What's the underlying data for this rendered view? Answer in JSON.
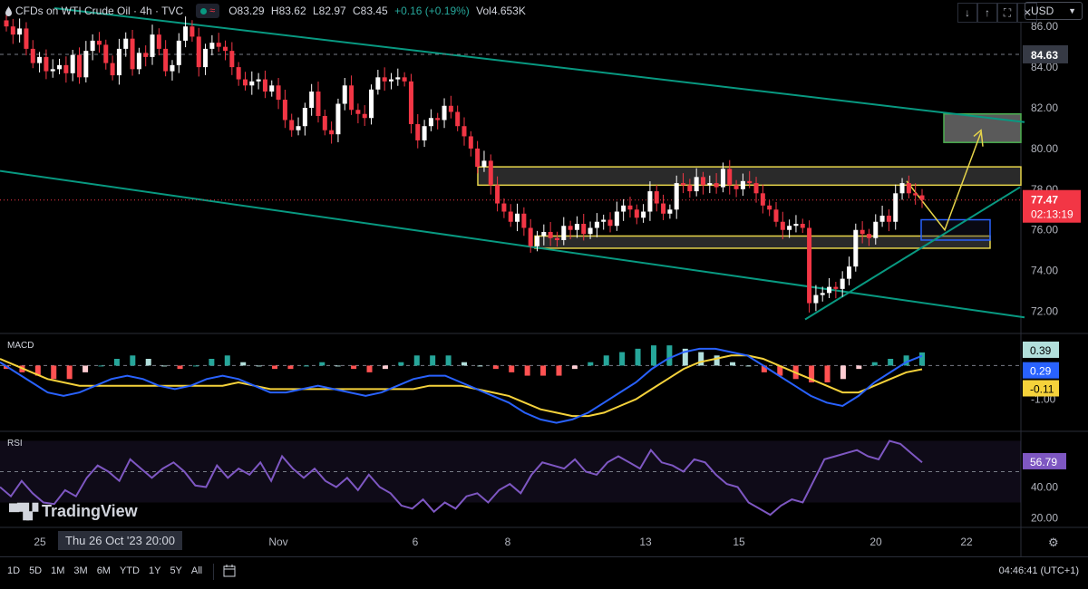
{
  "header": {
    "symbol": "CFDs on WTI Crude Oil · 4h · TVC",
    "open": "O83.29",
    "high": "H83.62",
    "low": "L82.97",
    "close": "C83.45",
    "change": "+0.16 (+0.19%)",
    "volume": "Vol4.653K"
  },
  "toolbar": {
    "currency": "USD",
    "down_icon": "arrow-down-icon",
    "up_icon": "arrow-up-icon",
    "expand_icon": "expand-icon",
    "close_icon": "close-icon"
  },
  "price_axis": {
    "ticks": [
      "86.00",
      "84.00",
      "82.00",
      "80.00",
      "78.00",
      "76.00",
      "74.00",
      "72.00"
    ],
    "crosshair_label": "84.63",
    "last_price": "77.47",
    "countdown": "02:13:19"
  },
  "macd": {
    "title": "MACD",
    "tick": "-1.00",
    "histogram_label": "0.39",
    "macd_label": "0.29",
    "signal_label": "-0.11"
  },
  "rsi": {
    "title": "RSI",
    "ticks": [
      "40.00",
      "20.00"
    ],
    "value_label": "56.79"
  },
  "time_axis": {
    "labels": [
      "25",
      "Nov",
      "6",
      "8",
      "13",
      "15",
      "20",
      "22"
    ],
    "hover_label": "Thu 26 Oct '23   20:00"
  },
  "watermark": "TradingView",
  "timeframes": [
    "1D",
    "5D",
    "1M",
    "3M",
    "6M",
    "YTD",
    "1Y",
    "5Y",
    "All"
  ],
  "clock": "04:46:41 (UTC+1)",
  "colors": {
    "up": "#ffffff",
    "down": "#f23645",
    "channel": "#089981",
    "zone": "#e6d44a",
    "macd": "#2962ff",
    "signal": "#f5d23b",
    "rsi": "#7e57c2"
  },
  "chart_data": [
    {
      "type": "candlestick",
      "title": "CFDs on WTI Crude Oil · 4h · TVC",
      "ylim": [
        71,
        87.3
      ],
      "x_labels": [
        "25",
        "Nov",
        "6",
        "8",
        "13",
        "15",
        "20",
        "22"
      ],
      "close": [
        86.0,
        85.6,
        85.9,
        84.9,
        84.2,
        84.5,
        83.8,
        83.9,
        84.1,
        83.7,
        84.6,
        83.5,
        84.8,
        85.3,
        85.1,
        84.2,
        83.6,
        84.9,
        85.4,
        83.9,
        84.7,
        84.5,
        85.6,
        84.9,
        83.8,
        84.1,
        85.3,
        86.0,
        85.5,
        84.0,
        84.9,
        85.2,
        85.0,
        84.8,
        84.0,
        83.4,
        83.1,
        83.3,
        83.4,
        82.8,
        83.1,
        82.4,
        81.4,
        80.9,
        81.1,
        82.0,
        82.8,
        81.6,
        80.9,
        80.7,
        82.2,
        83.1,
        81.9,
        81.7,
        81.5,
        82.9,
        83.5,
        83.3,
        83.4,
        83.5,
        83.3,
        81.2,
        80.4,
        81.1,
        81.5,
        81.4,
        82.1,
        81.8,
        81.1,
        80.6,
        80.0,
        79.1,
        79.4,
        78.2,
        77.3,
        76.9,
        76.4,
        76.8,
        76.1,
        75.2,
        75.7,
        75.9,
        75.6,
        75.5,
        76.2,
        76.0,
        76.3,
        75.8,
        76.1,
        76.4,
        76.5,
        76.2,
        76.9,
        77.2,
        77.0,
        76.6,
        76.9,
        77.9,
        77.3,
        76.8,
        77.0,
        78.3,
        78.2,
        77.9,
        78.6,
        78.2,
        78.3,
        78.1,
        79.0,
        78.2,
        78.0,
        78.4,
        78.3,
        77.8,
        77.2,
        77.0,
        76.4,
        76.0,
        76.2,
        76.3,
        76.1,
        72.4,
        72.8,
        72.9,
        73.2,
        73.1,
        73.6,
        74.2,
        76.0,
        75.8,
        75.6,
        76.4,
        76.7,
        76.4,
        77.8,
        78.3,
        77.8,
        77.7,
        77.47
      ],
      "price_zones": [
        {
          "name": "resistance",
          "from": 78.2,
          "to": 79.1
        },
        {
          "name": "support",
          "from": 75.1,
          "to": 75.7
        },
        {
          "name": "target",
          "from": 80.3,
          "to": 81.7
        },
        {
          "name": "entry",
          "from": 75.5,
          "to": 76.5
        }
      ],
      "trendlines": [
        {
          "name": "channel-top",
          "from": [
            60,
            86.9
          ],
          "to": [
            1130,
            81.3
          ]
        },
        {
          "name": "channel-bottom",
          "from": [
            0,
            78.9
          ],
          "to": [
            1130,
            71.7
          ]
        },
        {
          "name": "ascending-support",
          "from": [
            888,
            71.6
          ],
          "to": [
            1125,
            78.1
          ]
        }
      ],
      "last_price": 77.47
    },
    {
      "type": "line",
      "title": "MACD",
      "ylim": [
        -1.9,
        0.9
      ],
      "tick": "-1.00",
      "series": [
        {
          "name": "MACD",
          "values": [
            0.1,
            -0.2,
            -0.5,
            -0.8,
            -0.9,
            -0.8,
            -0.6,
            -0.4,
            -0.3,
            -0.4,
            -0.6,
            -0.7,
            -0.6,
            -0.4,
            -0.3,
            -0.4,
            -0.6,
            -0.8,
            -0.8,
            -0.7,
            -0.6,
            -0.7,
            -0.8,
            -0.9,
            -0.8,
            -0.6,
            -0.4,
            -0.3,
            -0.3,
            -0.5,
            -0.7,
            -0.9,
            -1.1,
            -1.4,
            -1.6,
            -1.7,
            -1.6,
            -1.4,
            -1.1,
            -0.8,
            -0.5,
            -0.1,
            0.2,
            0.4,
            0.5,
            0.5,
            0.4,
            0.3,
            0.0,
            -0.3,
            -0.6,
            -0.9,
            -1.1,
            -1.2,
            -0.9,
            -0.5,
            -0.2,
            0.1,
            0.29
          ]
        },
        {
          "name": "Signal",
          "values": [
            0.2,
            0.0,
            -0.2,
            -0.4,
            -0.5,
            -0.6,
            -0.6,
            -0.6,
            -0.6,
            -0.6,
            -0.6,
            -0.6,
            -0.6,
            -0.6,
            -0.6,
            -0.5,
            -0.6,
            -0.7,
            -0.7,
            -0.7,
            -0.7,
            -0.7,
            -0.7,
            -0.7,
            -0.7,
            -0.7,
            -0.7,
            -0.6,
            -0.6,
            -0.6,
            -0.7,
            -0.8,
            -0.9,
            -1.1,
            -1.3,
            -1.4,
            -1.5,
            -1.5,
            -1.4,
            -1.2,
            -1.0,
            -0.7,
            -0.4,
            -0.1,
            0.1,
            0.2,
            0.3,
            0.3,
            0.2,
            0.0,
            -0.2,
            -0.4,
            -0.6,
            -0.8,
            -0.8,
            -0.6,
            -0.4,
            -0.2,
            -0.11
          ]
        },
        {
          "name": "Histogram",
          "values": [
            -0.1,
            -0.2,
            -0.3,
            -0.4,
            -0.4,
            -0.2,
            0.0,
            0.2,
            0.3,
            0.2,
            0.0,
            -0.1,
            0.0,
            0.2,
            0.3,
            0.1,
            0.0,
            -0.1,
            -0.1,
            0.0,
            0.1,
            0.0,
            -0.1,
            -0.2,
            -0.1,
            0.1,
            0.3,
            0.3,
            0.3,
            0.1,
            0.0,
            -0.1,
            -0.2,
            -0.3,
            -0.3,
            -0.3,
            -0.1,
            0.1,
            0.3,
            0.4,
            0.5,
            0.6,
            0.6,
            0.5,
            0.4,
            0.3,
            0.1,
            0.0,
            -0.2,
            -0.3,
            -0.4,
            -0.5,
            -0.5,
            -0.4,
            -0.1,
            0.1,
            0.2,
            0.3,
            0.39
          ]
        }
      ],
      "labels": {
        "histogram": 0.39,
        "macd": 0.29,
        "signal": -0.11
      }
    },
    {
      "type": "line",
      "title": "RSI",
      "ylim": [
        15,
        75
      ],
      "ticks": [
        40,
        20
      ],
      "bands": [
        30,
        50
      ],
      "series": [
        {
          "name": "RSI",
          "values": [
            40,
            34,
            44,
            36,
            30,
            29,
            38,
            34,
            46,
            54,
            50,
            44,
            58,
            52,
            46,
            52,
            56,
            50,
            41,
            40,
            54,
            46,
            52,
            48,
            56,
            44,
            60,
            52,
            46,
            52,
            44,
            40,
            46,
            38,
            48,
            40,
            36,
            28,
            26,
            32,
            24,
            30,
            26,
            34,
            36,
            30,
            38,
            42,
            36,
            48,
            56,
            54,
            52,
            58,
            50,
            48,
            56,
            60,
            56,
            52,
            64,
            56,
            54,
            50,
            58,
            56,
            48,
            42,
            40,
            30,
            26,
            22,
            28,
            32,
            30,
            44,
            58,
            60,
            62,
            64,
            60,
            58,
            70,
            68,
            62,
            56
          ]
        }
      ],
      "value_label": 56.79
    }
  ]
}
